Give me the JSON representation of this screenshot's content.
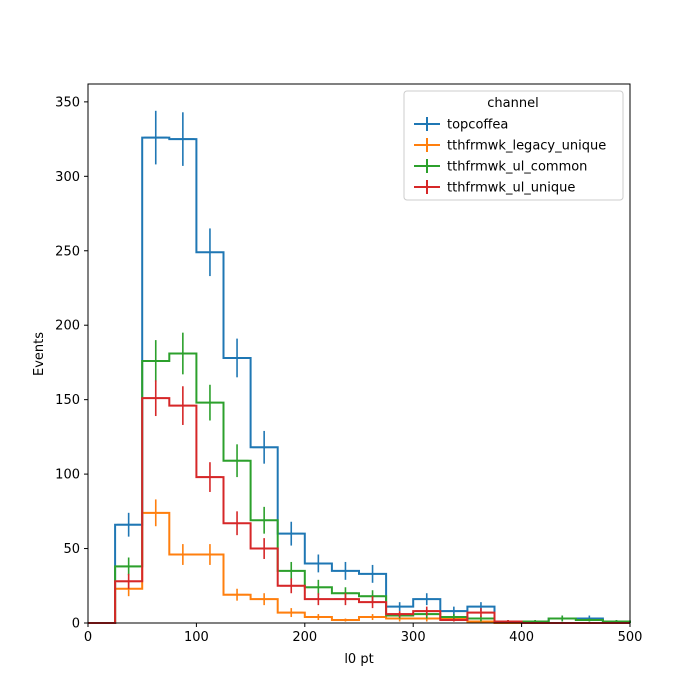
{
  "chart_data": {
    "type": "line",
    "style": "step-histogram-with-error-bars",
    "xlabel": "l0 pt",
    "ylabel": "Events",
    "xlim": [
      0,
      500
    ],
    "ylim": [
      0,
      362
    ],
    "x_ticks": [
      0,
      100,
      200,
      300,
      400,
      500
    ],
    "y_ticks": [
      0,
      50,
      100,
      150,
      200,
      250,
      300,
      350
    ],
    "grid": false,
    "legend": {
      "title": "channel",
      "placement": "top-right"
    },
    "bin_edges": [
      0,
      25,
      50,
      75,
      100,
      125,
      150,
      175,
      200,
      225,
      250,
      275,
      300,
      325,
      350,
      375,
      400,
      425,
      450,
      475,
      500
    ],
    "series": [
      {
        "name": "topcoffea",
        "color": "#1f77b4",
        "values": [
          0,
          66,
          326,
          325,
          249,
          178,
          118,
          60,
          40,
          35,
          33,
          11,
          16,
          8,
          11,
          1,
          1,
          3,
          3,
          1
        ],
        "errors": [
          0,
          8,
          18,
          18,
          16,
          13,
          11,
          8,
          6,
          6,
          6,
          3,
          4,
          3,
          3,
          1,
          1,
          2,
          2,
          1
        ]
      },
      {
        "name": "tthfrmwk_legacy_unique",
        "color": "#ff7f0e",
        "values": [
          0,
          23,
          74,
          46,
          46,
          19,
          16,
          7,
          4,
          2,
          4,
          3,
          3,
          3,
          1,
          0,
          0,
          0,
          0,
          0
        ],
        "errors": [
          0,
          5,
          9,
          7,
          7,
          4,
          4,
          3,
          2,
          1,
          2,
          2,
          2,
          2,
          1,
          0,
          0,
          0,
          0,
          0
        ]
      },
      {
        "name": "tthfrmwk_ul_common",
        "color": "#2ca02c",
        "values": [
          0,
          38,
          176,
          181,
          148,
          109,
          69,
          35,
          24,
          20,
          18,
          5,
          6,
          4,
          3,
          1,
          1,
          3,
          2,
          1
        ],
        "errors": [
          0,
          6,
          14,
          14,
          12,
          11,
          9,
          6,
          5,
          4,
          4,
          2,
          3,
          2,
          2,
          1,
          1,
          2,
          1,
          1
        ]
      },
      {
        "name": "tthfrmwk_ul_unique",
        "color": "#d62728",
        "values": [
          0,
          28,
          151,
          146,
          98,
          67,
          50,
          25,
          16,
          16,
          14,
          6,
          8,
          2,
          7,
          1,
          0,
          0,
          0,
          0
        ],
        "errors": [
          0,
          5,
          12,
          13,
          10,
          8,
          7,
          5,
          4,
          4,
          4,
          2,
          3,
          1,
          3,
          1,
          0,
          0,
          0,
          0
        ]
      }
    ]
  }
}
